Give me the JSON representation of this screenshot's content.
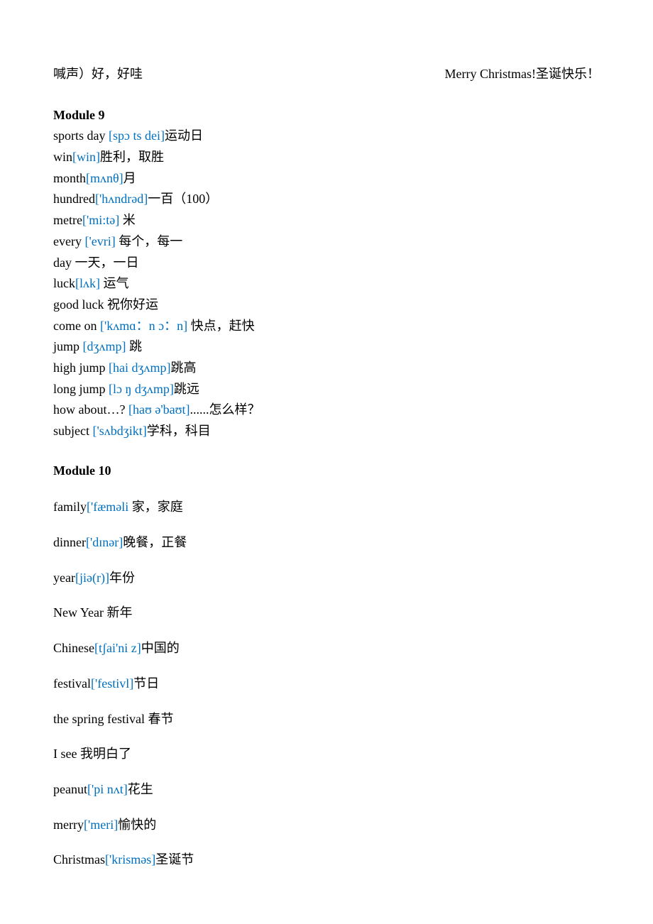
{
  "colors": {
    "text": "#000000",
    "phonetic": "#0070c0",
    "background": "#ffffff"
  },
  "typography": {
    "font_family": "Times New Roman / SimSun",
    "font_size_pt": 14,
    "heading_weight": "bold"
  },
  "top_left": "喊声）好，好哇",
  "top_right": "Merry Christmas!圣诞快乐！",
  "module9": {
    "heading": "Module 9",
    "entries": [
      {
        "word": "sports day ",
        "phon": "[spɔ ts dei]",
        "def": "运动日"
      },
      {
        "word": "win",
        "phon": "[win]",
        "def": "胜利，取胜"
      },
      {
        "word": "month",
        "phon": "[mʌnθ]",
        "def": "月"
      },
      {
        "word": "hundred",
        "phon": "['hʌndrəd]",
        "def": "一百（100）"
      },
      {
        "word": "metre",
        "phon": "['mi:tə]",
        "def": " 米"
      },
      {
        "word": "every ",
        "phon": "['evri]",
        "def": " 每个，每一"
      },
      {
        "word": "day ",
        "phon": "",
        "def": "一天，一日"
      },
      {
        "word": "luck",
        "phon": "[lʌk]",
        "def": " 运气"
      },
      {
        "word": "good luck ",
        "phon": "",
        "def": "祝你好运"
      },
      {
        "word": "come on ",
        "phon": "['kʌmɑ：n ɔ：n]",
        "def": " 快点，赶快"
      },
      {
        "word": "jump ",
        "phon": "[dʒʌmp]",
        "def": " 跳"
      },
      {
        "word": "high jump ",
        "phon": "[hai dʒʌmp]",
        "def": "跳高"
      },
      {
        "word": "long jump ",
        "phon": "[lɔ ŋ dʒʌmp]",
        "def": "跳远"
      },
      {
        "word": "how about…? ",
        "phon": "[haʊ ə'baʊt]",
        "def": "......怎么样？"
      },
      {
        "word": "subject ",
        "phon": "['sʌbdʒikt]",
        "def": "学科，科目"
      }
    ]
  },
  "module10": {
    "heading": "Module 10",
    "entries": [
      {
        "word": "family",
        "phon": "['fæməli ",
        "def": "家，家庭"
      },
      {
        "word": "dinner",
        "phon": "['dɪnər]",
        "def": "晚餐，正餐"
      },
      {
        "word": "year",
        "phon": "[jiə(r)]",
        "def": "年份"
      },
      {
        "word": "New Year ",
        "phon": "",
        "def": "新年"
      },
      {
        "word": "Chinese",
        "phon": "[tʃai'ni z]",
        "def": "中国的"
      },
      {
        "word": "festival",
        "phon": "['festivl]",
        "def": "节日"
      },
      {
        "word": "the spring festival ",
        "phon": "",
        "def": "春节"
      },
      {
        "word": "I see ",
        "phon": "",
        "def": "我明白了"
      },
      {
        "word": "peanut",
        "phon": "['pi nʌt]",
        "def": "花生"
      },
      {
        "word": "merry",
        "phon": "['meri]",
        "def": "愉快的"
      },
      {
        "word": "Christmas",
        "phon": "['krisməs]",
        "def": "圣诞节"
      }
    ]
  }
}
